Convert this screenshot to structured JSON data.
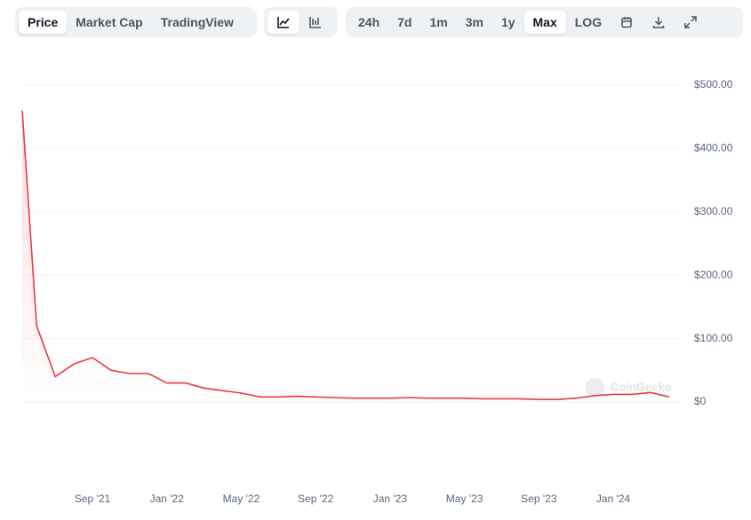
{
  "toolbar": {
    "tabs": [
      "Price",
      "Market Cap",
      "TradingView"
    ],
    "ranges": [
      "24h",
      "7d",
      "1m",
      "3m",
      "1y",
      "Max",
      "LOG"
    ]
  },
  "chart_data": {
    "type": "line",
    "watermark": "CoinGecko",
    "categories": [
      null,
      null,
      null,
      null,
      "Sep '21",
      null,
      null,
      null,
      "Jan '22",
      null,
      null,
      null,
      "May '22",
      null,
      null,
      null,
      "Sep '22",
      null,
      null,
      null,
      "Jan '23",
      null,
      null,
      null,
      "May '23",
      null,
      null,
      null,
      "Sep '23",
      null,
      null,
      null,
      "Jan '24",
      null,
      null,
      null
    ],
    "series": [
      {
        "name": "Price",
        "color": "#ea3943",
        "values": [
          460,
          120,
          40,
          60,
          70,
          50,
          45,
          45,
          30,
          30,
          22,
          18,
          14,
          8,
          8,
          9,
          8,
          7,
          6,
          6,
          6,
          7,
          6,
          6,
          6,
          5,
          5,
          5,
          4,
          4,
          6,
          10,
          12,
          12,
          15,
          8
        ]
      }
    ],
    "ylim": [
      0,
      500
    ],
    "yticks": [
      {
        "value": 0,
        "label": "$0"
      },
      {
        "value": 100,
        "label": "$100.00"
      },
      {
        "value": 200,
        "label": "$200.00"
      },
      {
        "value": 300,
        "label": "$300.00"
      },
      {
        "value": 400,
        "label": "$400.00"
      },
      {
        "value": 500,
        "label": "$500.00"
      }
    ],
    "grid": true
  }
}
